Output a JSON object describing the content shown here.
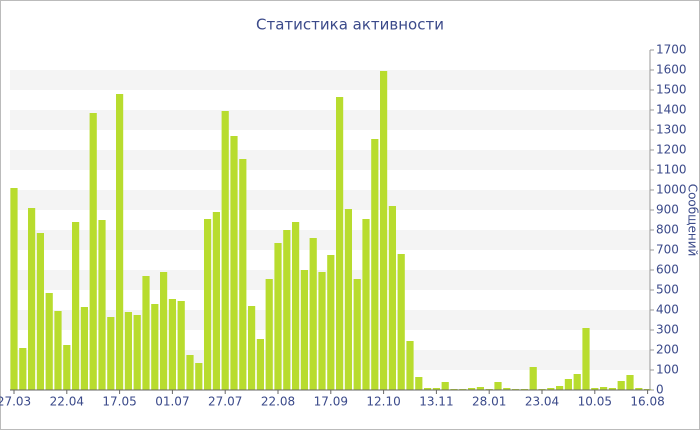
{
  "chart_data": {
    "type": "bar",
    "title": "Статистика активности",
    "y_label": "Сообщений",
    "categories": [
      "27.03",
      null,
      null,
      null,
      null,
      null,
      "22.04",
      null,
      null,
      null,
      null,
      null,
      "17.05",
      null,
      null,
      null,
      null,
      null,
      "01.07",
      null,
      null,
      null,
      null,
      null,
      "27.07",
      null,
      null,
      null,
      null,
      null,
      "22.08",
      null,
      null,
      null,
      null,
      null,
      "17.09",
      null,
      null,
      null,
      null,
      null,
      "12.10",
      null,
      null,
      null,
      null,
      null,
      "13.11",
      null,
      null,
      null,
      null,
      null,
      "28.01",
      null,
      null,
      null,
      null,
      null,
      "23.04",
      null,
      null,
      null,
      null,
      null,
      "10.05",
      null,
      null,
      null,
      null,
      null,
      "16.08"
    ],
    "values": [
      1010,
      210,
      910,
      785,
      485,
      395,
      225,
      840,
      415,
      1385,
      850,
      365,
      1480,
      390,
      375,
      570,
      430,
      590,
      455,
      445,
      175,
      135,
      855,
      890,
      1395,
      1270,
      1155,
      420,
      255,
      555,
      735,
      800,
      840,
      600,
      760,
      590,
      675,
      1465,
      905,
      555,
      855,
      1255,
      1595,
      920,
      680,
      245,
      65,
      10,
      10,
      40,
      5,
      5,
      10,
      15,
      5,
      40,
      10,
      5,
      5,
      115,
      5,
      10,
      20,
      55,
      80,
      310,
      10,
      15,
      10,
      45,
      75,
      10,
      5
    ],
    "color": "#b8dc2e",
    "ylim": [
      0,
      1700
    ],
    "yticks": [
      0,
      100,
      200,
      300,
      400,
      500,
      600,
      700,
      800,
      900,
      1000,
      1100,
      1200,
      1300,
      1400,
      1500,
      1600,
      1700
    ],
    "grid": true
  }
}
